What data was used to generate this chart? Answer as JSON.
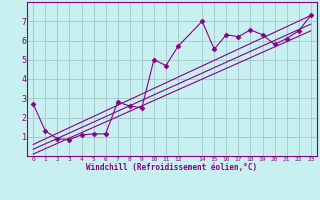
{
  "xlabel": "Windchill (Refroidissement éolien,°C)",
  "bg_color": "#c8f0f0",
  "grid_color": "#a0c8c8",
  "line_color": "#880088",
  "xlim": [
    -0.5,
    23.5
  ],
  "ylim": [
    0,
    8
  ],
  "xtick_positions": [
    0,
    1,
    2,
    3,
    4,
    5,
    6,
    7,
    8,
    9,
    10,
    11,
    12,
    14,
    15,
    16,
    17,
    18,
    19,
    20,
    21,
    22,
    23
  ],
  "xtick_labels": [
    "0",
    "1",
    "2",
    "3",
    "4",
    "5",
    "6",
    "7",
    "8",
    "9",
    "10",
    "11",
    "12",
    "14",
    "15",
    "16",
    "17",
    "18",
    "19",
    "20",
    "21",
    "22",
    "23"
  ],
  "ytick_positions": [
    1,
    2,
    3,
    4,
    5,
    6,
    7
  ],
  "ytick_labels": [
    "1",
    "2",
    "3",
    "4",
    "5",
    "6",
    "7"
  ],
  "scatter_x": [
    0,
    1,
    2,
    3,
    4,
    5,
    6,
    7,
    8,
    9,
    10,
    11,
    12,
    14,
    15,
    16,
    17,
    18,
    19,
    20,
    21,
    22,
    23
  ],
  "scatter_y": [
    2.7,
    1.3,
    0.9,
    0.85,
    1.1,
    1.15,
    1.15,
    2.8,
    2.6,
    2.5,
    5.0,
    4.7,
    5.7,
    7.0,
    5.55,
    6.3,
    6.2,
    6.55,
    6.3,
    5.8,
    6.1,
    6.5,
    7.3
  ],
  "line1_x": [
    0,
    23
  ],
  "line1_y": [
    0.6,
    7.3
  ],
  "line2_x": [
    0,
    23
  ],
  "line2_y": [
    0.35,
    6.85
  ],
  "line3_x": [
    0,
    23
  ],
  "line3_y": [
    0.1,
    6.5
  ],
  "marker_style": "D",
  "marker_size": 2.5,
  "line_width": 0.8
}
